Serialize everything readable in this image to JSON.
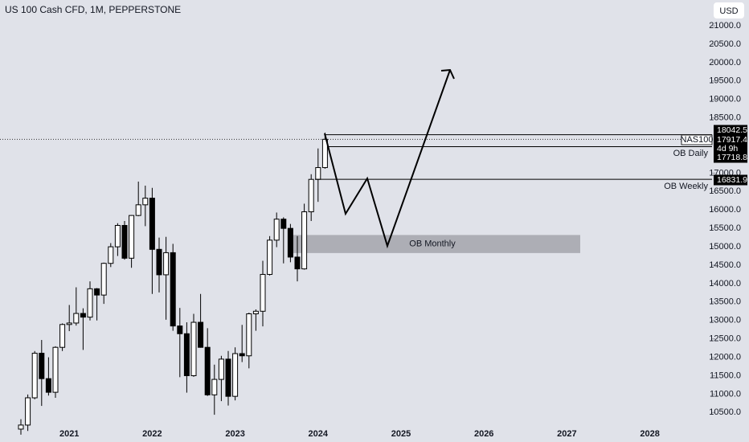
{
  "chart_data": {
    "type": "candlestick",
    "title": "US 100 Cash CFD, 1M, PEPPERSTONE",
    "currency": "USD",
    "categories": [
      null,
      null,
      null,
      null,
      null,
      null,
      null,
      "2021",
      null,
      null,
      null,
      null,
      null,
      null,
      null,
      null,
      null,
      null,
      null,
      "2022",
      null,
      null,
      null,
      null,
      null,
      null,
      null,
      null,
      null,
      null,
      null,
      "2023",
      null,
      null,
      null,
      null,
      null,
      null,
      null,
      null,
      null,
      null,
      null,
      "2024",
      null,
      null,
      null,
      null,
      null,
      null,
      null,
      null,
      null,
      null,
      null,
      "2025",
      null,
      null,
      null,
      null,
      null,
      null,
      null,
      null,
      null,
      null,
      null,
      "2026",
      null,
      null,
      null,
      null,
      null,
      null,
      null,
      null,
      null,
      null,
      null,
      "2027",
      null,
      null,
      null,
      null,
      null,
      null,
      null,
      null,
      null,
      null,
      null,
      "2028"
    ],
    "open": [
      10050,
      10160,
      10900,
      12110,
      11420,
      11050,
      12270,
      12890,
      12930,
      13190,
      13090,
      13860,
      13690,
      14550,
      15000,
      15580,
      14690,
      15850,
      16140,
      16320,
      14930,
      14240,
      14840,
      12850,
      12640,
      11500,
      12950,
      12270,
      10980,
      11400,
      11950,
      10940,
      12100,
      12040,
      13180,
      13250,
      14250,
      15180,
      15750,
      15500,
      14720,
      14400,
      15950,
      16830,
      17150,
      null,
      null,
      null,
      null,
      null,
      null,
      null,
      null,
      null,
      null,
      null,
      null,
      null,
      null,
      null,
      null,
      null,
      null,
      null,
      null,
      null,
      null,
      null,
      null,
      null,
      null,
      null,
      null,
      null,
      null,
      null,
      null,
      null,
      null,
      null,
      null,
      null,
      null,
      null,
      null,
      null,
      null,
      null,
      null,
      null,
      null,
      null
    ],
    "high": [
      10320,
      10990,
      12170,
      12470,
      12000,
      12300,
      12920,
      13420,
      13900,
      13330,
      14060,
      13880,
      14570,
      15100,
      15640,
      15700,
      15860,
      16770,
      16660,
      16600,
      15250,
      15270,
      15080,
      13340,
      12950,
      13180,
      13720,
      12790,
      11800,
      12040,
      12170,
      12270,
      12880,
      13210,
      13300,
      14620,
      15290,
      15930,
      15800,
      15620,
      15290,
      16170,
      16970,
      17670,
      18100,
      null,
      null,
      null,
      null,
      null,
      null,
      null,
      null,
      null,
      null,
      null,
      null,
      null,
      null,
      null,
      null,
      null,
      null,
      null,
      null,
      null,
      null,
      null,
      null,
      null,
      null,
      null,
      null,
      null,
      null,
      null,
      null,
      null,
      null,
      null,
      null,
      null,
      null,
      null,
      null,
      null,
      null,
      null,
      null,
      null,
      null,
      null
    ],
    "low": [
      9900,
      10000,
      10860,
      10680,
      10960,
      10900,
      12170,
      12710,
      12860,
      12200,
      13000,
      13000,
      13450,
      14450,
      14750,
      14650,
      14430,
      15830,
      15560,
      13720,
      13760,
      13020,
      12720,
      11460,
      11040,
      11470,
      12260,
      10950,
      10440,
      10810,
      10690,
      10830,
      11870,
      11700,
      12720,
      12840,
      14220,
      14990,
      14550,
      14580,
      14060,
      14380,
      15700,
      16220,
      17120,
      null,
      null,
      null,
      null,
      null,
      null,
      null,
      null,
      null,
      null,
      null,
      null,
      null,
      null,
      null,
      null,
      null,
      null,
      null,
      null,
      null,
      null,
      null,
      null,
      null,
      null,
      null,
      null,
      null,
      null,
      null,
      null,
      null,
      null,
      null,
      null,
      null,
      null,
      null,
      null,
      null,
      null,
      null,
      null,
      null,
      null,
      null
    ],
    "close": [
      10160,
      10900,
      12110,
      11420,
      11050,
      12270,
      12890,
      12930,
      13190,
      13090,
      13860,
      13690,
      14550,
      15000,
      15580,
      14690,
      15850,
      16140,
      16320,
      14930,
      14240,
      14840,
      12850,
      12640,
      11500,
      12950,
      12270,
      10980,
      11400,
      11950,
      10940,
      12100,
      12040,
      13180,
      13250,
      14250,
      15180,
      15750,
      15500,
      14720,
      14400,
      15950,
      16830,
      17150,
      17917.4,
      null,
      null,
      null,
      null,
      null,
      null,
      null,
      null,
      null,
      null,
      null,
      null,
      null,
      null,
      null,
      null,
      null,
      null,
      null,
      null,
      null,
      null,
      null,
      null,
      null,
      null,
      null,
      null,
      null,
      null,
      null,
      null,
      null,
      null,
      null,
      null,
      null,
      null,
      null,
      null,
      null,
      null,
      null,
      null,
      null,
      null,
      null
    ],
    "up_color": "#ffffff",
    "down_color": "#000000",
    "ylim": [
      9700,
      21700
    ],
    "yticks": [
      {
        "value": 10500,
        "label": "10500.0"
      },
      {
        "value": 11000,
        "label": "11000.0"
      },
      {
        "value": 11500,
        "label": "11500.0"
      },
      {
        "value": 12000,
        "label": "12000.0"
      },
      {
        "value": 12500,
        "label": "12500.0"
      },
      {
        "value": 13000,
        "label": "13000.0"
      },
      {
        "value": 13500,
        "label": "13500.0"
      },
      {
        "value": 14000,
        "label": "14000.0"
      },
      {
        "value": 14500,
        "label": "14500.0"
      },
      {
        "value": 15000,
        "label": "15000.0"
      },
      {
        "value": 15500,
        "label": "15500.0"
      },
      {
        "value": 16000,
        "label": "16000.0"
      },
      {
        "value": 16500,
        "label": "16500.0"
      },
      {
        "value": 17000,
        "label": "17000.0"
      },
      {
        "value": 18500,
        "label": "18500.0"
      },
      {
        "value": 19000,
        "label": "19000.0"
      },
      {
        "value": 19500,
        "label": "19500.0"
      },
      {
        "value": 20000,
        "label": "20000.0"
      },
      {
        "value": 20500,
        "label": "20500.0"
      },
      {
        "value": 21000,
        "label": "21000.0"
      }
    ],
    "levels": [
      {
        "price": 18042.5
      },
      {
        "price": 17718.8,
        "label": "OB Daily"
      },
      {
        "price": 16831.9,
        "label": "OB Weekly"
      }
    ],
    "last_price": {
      "symbol": "NAS100",
      "price": 17917.4,
      "countdown": "4d 9h"
    },
    "zone": {
      "label": "OB Monthly",
      "low": 14830,
      "high": 15320
    }
  }
}
